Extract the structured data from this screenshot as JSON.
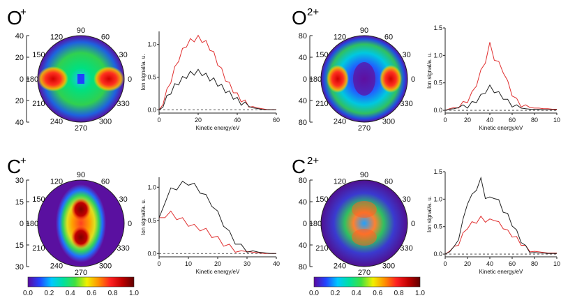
{
  "panels": [
    {
      "ion": "O",
      "charge": "+"
    },
    {
      "ion": "O",
      "charge": "2+"
    },
    {
      "ion": "C",
      "charge": "+"
    },
    {
      "ion": "C",
      "charge": "2+"
    }
  ],
  "polar": {
    "angle_labels": [
      "90",
      "60",
      "30",
      "0",
      "330",
      "300",
      "270",
      "240",
      "210",
      "180",
      "150",
      "120"
    ],
    "axes": [
      {
        "panel": "O+",
        "ticks": [
          "40",
          "20",
          "0",
          "20",
          "40"
        ],
        "max": 40
      },
      {
        "panel": "O2+",
        "ticks": [
          "80",
          "40",
          "0",
          "40",
          "80"
        ],
        "max": 80
      },
      {
        "panel": "C+",
        "ticks": [
          "30",
          "15",
          "0",
          "15",
          "30"
        ],
        "max": 30
      },
      {
        "panel": "C2+",
        "ticks": [
          "80",
          "40",
          "0",
          "40",
          "80"
        ],
        "max": 80
      }
    ]
  },
  "colorbar": {
    "ticks": [
      "0.0",
      "0.2",
      "0.4",
      "0.6",
      "0.8",
      "1.0"
    ],
    "stops": [
      "#5a0aa0",
      "#2244ff",
      "#00c8ff",
      "#00e0a0",
      "#40e040",
      "#f0f000",
      "#ff9000",
      "#ff2020",
      "#c00000",
      "#600000"
    ]
  },
  "chart_data": [
    {
      "type": "line",
      "panel": "O+",
      "xlabel": "Kinetic energy/eV",
      "ylabel": "Ion signal/a. u.",
      "xlim": [
        0,
        60
      ],
      "ylim": [
        -0.05,
        1.2
      ],
      "xticks": [
        "0",
        "20",
        "40",
        "60"
      ],
      "yticks": [
        "0.0",
        "0.5",
        "1.0"
      ],
      "x": [
        0,
        2,
        4,
        6,
        8,
        10,
        12,
        14,
        16,
        18,
        20,
        22,
        24,
        26,
        28,
        30,
        32,
        34,
        36,
        38,
        40,
        42,
        44,
        46,
        48,
        50,
        52,
        54,
        56,
        58,
        60
      ],
      "series": [
        {
          "color": "#e03030",
          "values": [
            0.0,
            0.12,
            0.28,
            0.45,
            0.62,
            0.78,
            0.9,
            1.0,
            1.05,
            1.08,
            1.1,
            1.07,
            1.02,
            0.95,
            0.85,
            0.72,
            0.6,
            0.48,
            0.38,
            0.3,
            0.22,
            0.16,
            0.11,
            0.08,
            0.05,
            0.03,
            0.02,
            0.01,
            0.0,
            0.0,
            0.0
          ]
        },
        {
          "color": "#222222",
          "values": [
            0.0,
            0.08,
            0.18,
            0.28,
            0.36,
            0.42,
            0.47,
            0.52,
            0.55,
            0.57,
            0.58,
            0.56,
            0.52,
            0.48,
            0.45,
            0.4,
            0.35,
            0.3,
            0.25,
            0.2,
            0.15,
            0.11,
            0.08,
            0.05,
            0.03,
            0.02,
            0.01,
            0.0,
            0.0,
            0.0,
            0.0
          ]
        }
      ]
    },
    {
      "type": "line",
      "panel": "O2+",
      "xlabel": "Kinetic energy/eV",
      "ylabel": "Ion signal/a. u.",
      "xlim": [
        0,
        100
      ],
      "ylim": [
        -0.05,
        1.5
      ],
      "xticks": [
        "0",
        "20",
        "40",
        "60",
        "80",
        "10"
      ],
      "yticks": [
        "0.0",
        "0.5",
        "1.0",
        "1.5"
      ],
      "x": [
        0,
        4,
        8,
        12,
        16,
        20,
        24,
        28,
        32,
        36,
        40,
        44,
        48,
        52,
        56,
        60,
        64,
        68,
        72,
        76,
        80,
        84,
        88,
        92,
        96,
        100
      ],
      "series": [
        {
          "color": "#e03030",
          "values": [
            0.0,
            0.03,
            0.05,
            0.08,
            0.12,
            0.18,
            0.3,
            0.48,
            0.7,
            0.9,
            1.2,
            0.95,
            0.85,
            0.72,
            0.5,
            0.3,
            0.18,
            0.1,
            0.06,
            0.05,
            0.04,
            0.04,
            0.03,
            0.03,
            0.02,
            0.02
          ]
        },
        {
          "color": "#222222",
          "values": [
            0.0,
            0.02,
            0.03,
            0.05,
            0.06,
            0.08,
            0.12,
            0.18,
            0.25,
            0.35,
            0.42,
            0.36,
            0.3,
            0.24,
            0.16,
            0.1,
            0.06,
            0.04,
            0.03,
            0.02,
            0.02,
            0.02,
            0.01,
            0.01,
            0.01,
            0.01
          ]
        }
      ]
    },
    {
      "type": "line",
      "panel": "C+",
      "xlabel": "Kinetic energy/eV",
      "ylabel": "Ion signal/a. u.",
      "xlim": [
        0,
        40
      ],
      "ylim": [
        -0.05,
        1.15
      ],
      "xticks": [
        "0",
        "10",
        "20",
        "30",
        "40"
      ],
      "yticks": [
        "0.0",
        "0.5",
        "1.0"
      ],
      "x": [
        0,
        2,
        4,
        6,
        8,
        10,
        12,
        14,
        16,
        18,
        20,
        22,
        24,
        26,
        28,
        30,
        32,
        34,
        36,
        38,
        40
      ],
      "series": [
        {
          "color": "#e03030",
          "values": [
            0.5,
            0.58,
            0.6,
            0.55,
            0.5,
            0.45,
            0.4,
            0.38,
            0.34,
            0.28,
            0.22,
            0.15,
            0.1,
            0.06,
            0.04,
            0.03,
            0.02,
            0.01,
            0.0,
            0.0,
            0.0
          ]
        },
        {
          "color": "#222222",
          "values": [
            0.5,
            0.8,
            0.95,
            1.0,
            1.05,
            1.07,
            1.02,
            0.95,
            0.85,
            0.75,
            0.6,
            0.45,
            0.3,
            0.18,
            0.1,
            0.06,
            0.04,
            0.02,
            0.01,
            0.0,
            0.0
          ]
        }
      ]
    },
    {
      "type": "line",
      "panel": "C2+",
      "xlabel": "Kinetic energy/eV",
      "ylabel": "Ion signal/a. u.",
      "xlim": [
        0,
        100
      ],
      "ylim": [
        -0.05,
        1.5
      ],
      "xticks": [
        "0",
        "20",
        "40",
        "60",
        "80",
        "10"
      ],
      "yticks": [
        "0.0",
        "0.5",
        "1.0",
        "1.5"
      ],
      "x": [
        0,
        4,
        8,
        12,
        16,
        20,
        24,
        28,
        32,
        36,
        40,
        44,
        48,
        52,
        56,
        60,
        64,
        68,
        72,
        76,
        80,
        84,
        88,
        92,
        96,
        100
      ],
      "series": [
        {
          "color": "#e03030",
          "values": [
            0.0,
            0.05,
            0.1,
            0.2,
            0.35,
            0.5,
            0.55,
            0.6,
            0.65,
            0.62,
            0.6,
            0.65,
            0.55,
            0.5,
            0.4,
            0.35,
            0.28,
            0.2,
            0.12,
            0.08,
            0.05,
            0.04,
            0.03,
            0.02,
            0.02,
            0.02
          ]
        },
        {
          "color": "#222222",
          "values": [
            0.0,
            0.04,
            0.1,
            0.3,
            0.6,
            0.95,
            1.05,
            1.2,
            1.35,
            1.05,
            1.0,
            1.05,
            0.95,
            0.8,
            0.7,
            0.55,
            0.4,
            0.25,
            0.12,
            0.06,
            0.03,
            0.02,
            0.02,
            0.01,
            0.01,
            0.01
          ]
        }
      ]
    }
  ]
}
